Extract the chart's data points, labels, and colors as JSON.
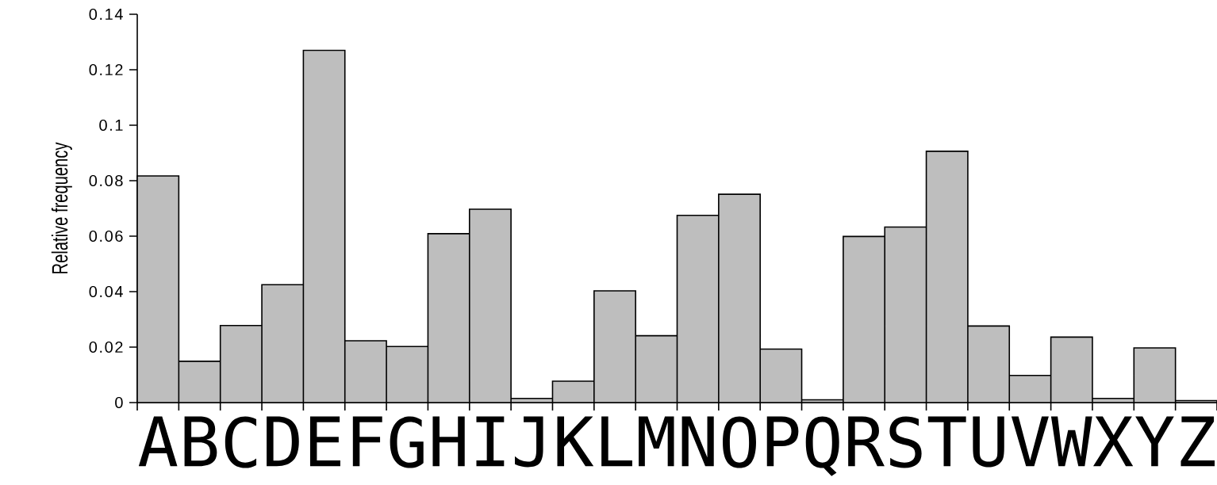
{
  "chart_data": {
    "type": "bar",
    "ylabel": "Relative frequency",
    "categories": [
      "A",
      "B",
      "C",
      "D",
      "E",
      "F",
      "G",
      "H",
      "I",
      "J",
      "K",
      "L",
      "M",
      "N",
      "O",
      "P",
      "Q",
      "R",
      "S",
      "T",
      "U",
      "V",
      "W",
      "X",
      "Y",
      "Z"
    ],
    "values": [
      0.0817,
      0.0149,
      0.0278,
      0.0425,
      0.127,
      0.0223,
      0.0202,
      0.0609,
      0.0697,
      0.0015,
      0.0077,
      0.0403,
      0.0241,
      0.0675,
      0.0751,
      0.0193,
      0.001,
      0.0599,
      0.0633,
      0.0906,
      0.0276,
      0.0098,
      0.0236,
      0.0015,
      0.0197,
      0.0007
    ],
    "color": "#bebebe",
    "ylim": [
      0,
      0.14
    ],
    "yticks": [
      0,
      0.02,
      0.04,
      0.06,
      0.08,
      0.1,
      0.12,
      0.14
    ],
    "grid": false
  }
}
